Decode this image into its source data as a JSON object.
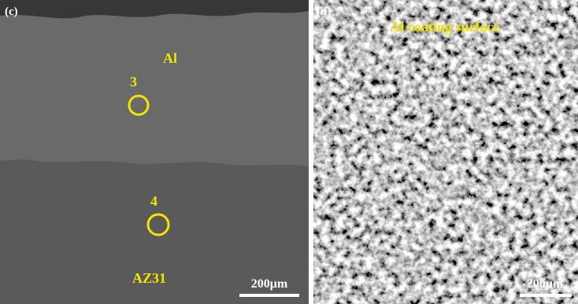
{
  "panels": [
    {
      "label": "(c)",
      "annotations": [
        "Al",
        "3",
        "4",
        "AZ31"
      ],
      "scale_bar": "200μm"
    },
    {
      "label": "(d)",
      "annotations": [
        "Al coating surface"
      ],
      "scale_bar": "200μm"
    }
  ]
}
